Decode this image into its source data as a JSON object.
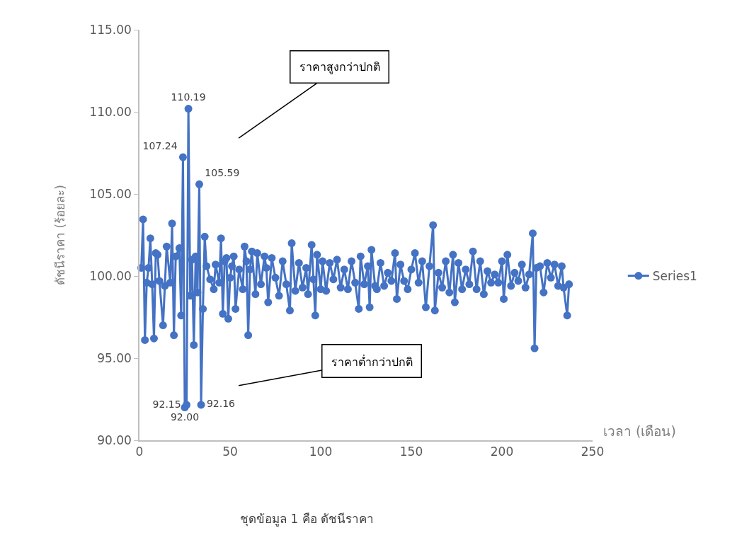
{
  "chart_data": {
    "type": "line",
    "xlabel": "เวลา (เดือน)",
    "ylabel": "ดัชนีราคา (ร้อยละ)",
    "x": [
      1,
      2,
      3,
      4,
      5,
      6,
      7,
      8,
      9,
      10,
      11,
      13,
      14,
      15,
      17,
      18,
      19,
      20,
      22,
      23,
      24,
      25,
      26,
      27,
      28,
      29,
      30,
      31,
      32,
      33,
      34,
      35,
      36,
      37,
      39,
      41,
      42,
      44,
      45,
      46,
      47,
      48,
      49,
      50,
      51,
      52,
      53,
      55,
      57,
      58,
      59,
      60,
      61,
      62,
      64,
      65,
      67,
      69,
      70,
      71,
      73,
      75,
      77,
      79,
      81,
      83,
      84,
      86,
      88,
      90,
      92,
      93,
      95,
      96,
      97,
      98,
      100,
      101,
      103,
      105,
      107,
      109,
      111,
      113,
      115,
      117,
      119,
      121,
      122,
      124,
      126,
      127,
      128,
      130,
      131,
      133,
      135,
      137,
      139,
      141,
      142,
      144,
      146,
      148,
      150,
      152,
      154,
      156,
      158,
      160,
      162,
      163,
      165,
      167,
      169,
      171,
      173,
      174,
      176,
      178,
      180,
      182,
      184,
      186,
      188,
      190,
      192,
      194,
      196,
      198,
      200,
      201,
      203,
      205,
      207,
      209,
      211,
      213,
      215,
      217,
      218,
      219,
      221,
      223,
      225,
      227,
      229,
      231,
      233,
      234,
      236,
      237
    ],
    "series": [
      {
        "name": "Series1",
        "color": "#4472c4",
        "values": [
          100.5,
          103.45,
          96.1,
          99.6,
          100.5,
          102.3,
          99.5,
          96.2,
          101.4,
          101.3,
          99.7,
          97.0,
          99.4,
          101.8,
          99.6,
          103.2,
          96.4,
          101.2,
          101.7,
          97.6,
          107.24,
          92.0,
          92.15,
          110.19,
          98.8,
          101.0,
          95.8,
          101.2,
          99.0,
          105.59,
          92.16,
          98.0,
          102.4,
          100.6,
          99.8,
          99.2,
          100.7,
          99.6,
          102.3,
          97.7,
          100.9,
          101.1,
          97.4,
          99.9,
          100.6,
          101.2,
          98.0,
          100.4,
          99.2,
          101.8,
          100.9,
          96.4,
          100.4,
          101.5,
          98.9,
          101.4,
          99.5,
          101.2,
          100.5,
          98.4,
          101.1,
          99.9,
          98.8,
          100.9,
          99.5,
          97.9,
          102.0,
          99.1,
          100.8,
          99.3,
          100.5,
          98.9,
          101.9,
          99.8,
          97.6,
          101.3,
          99.2,
          100.9,
          99.1,
          100.8,
          99.8,
          101.0,
          99.3,
          100.4,
          99.2,
          100.9,
          99.6,
          98.0,
          101.2,
          99.5,
          100.6,
          98.1,
          101.6,
          99.4,
          99.2,
          100.8,
          99.4,
          100.2,
          99.7,
          101.4,
          98.6,
          100.7,
          99.7,
          99.2,
          100.4,
          101.4,
          99.6,
          100.9,
          98.1,
          100.6,
          103.1,
          97.9,
          100.2,
          99.3,
          100.9,
          99.0,
          101.3,
          98.4,
          100.8,
          99.2,
          100.4,
          99.5,
          101.5,
          99.2,
          100.9,
          98.9,
          100.3,
          99.6,
          100.1,
          99.6,
          100.9,
          98.6,
          101.3,
          99.4,
          100.2,
          99.7,
          100.7,
          99.3,
          100.1,
          102.6,
          95.6,
          100.5,
          100.6,
          99.0,
          100.8,
          99.9,
          100.7,
          99.4,
          100.6,
          99.3,
          97.6,
          99.5
        ],
        "value_labels": [
          null,
          null,
          null,
          null,
          null,
          null,
          null,
          null,
          null,
          null,
          null,
          null,
          null,
          null,
          null,
          null,
          null,
          null,
          null,
          null,
          "107.24",
          "92.00",
          "92.15",
          "110.19",
          null,
          null,
          null,
          null,
          null,
          "105.59",
          "92.16",
          null,
          null,
          null,
          null,
          null,
          null,
          null,
          null,
          null,
          null,
          null,
          null,
          null,
          null,
          null,
          null,
          null,
          null,
          null,
          null,
          null,
          null,
          null,
          null,
          null,
          null,
          null,
          null,
          null,
          null,
          null,
          null,
          null,
          null,
          null,
          null,
          null,
          null,
          null,
          null,
          null,
          null,
          null,
          null,
          null,
          null,
          null,
          null,
          null,
          null,
          null,
          null,
          null,
          null,
          null,
          null,
          null,
          null,
          null,
          null,
          null,
          null,
          null,
          null,
          null,
          null,
          null,
          null,
          null,
          null,
          null,
          null,
          null,
          null,
          null,
          null,
          null,
          null,
          null,
          null,
          null,
          null,
          null,
          null,
          null,
          null,
          null,
          null,
          null,
          null,
          null,
          null,
          null,
          null,
          null,
          null,
          null,
          null,
          null,
          null,
          null,
          null,
          null,
          null,
          null,
          null,
          null,
          null,
          null,
          null,
          null,
          null,
          null,
          null,
          null,
          null,
          null,
          null,
          null,
          null,
          null
        ]
      }
    ],
    "xlim": [
      0,
      250
    ],
    "xticks": [
      0,
      50,
      100,
      150,
      200,
      250
    ],
    "ylim": [
      90,
      115
    ],
    "yticks": [
      {
        "value": 90,
        "label": "90.00"
      },
      {
        "value": 95,
        "label": "95.00"
      },
      {
        "value": 100,
        "label": "100.00"
      },
      {
        "value": 105,
        "label": "105.00"
      },
      {
        "value": 110,
        "label": "110.00"
      },
      {
        "value": 115,
        "label": "115.00"
      }
    ],
    "annotations": [
      "ราคาสูงกว่าปกติ",
      "ราคาต่ำกว่าปกติ",
      "ชุดข้อมูล 1 คือ ดัชนีราคา"
    ],
    "legend": "right",
    "marker": "circle",
    "line_style": "solid"
  }
}
